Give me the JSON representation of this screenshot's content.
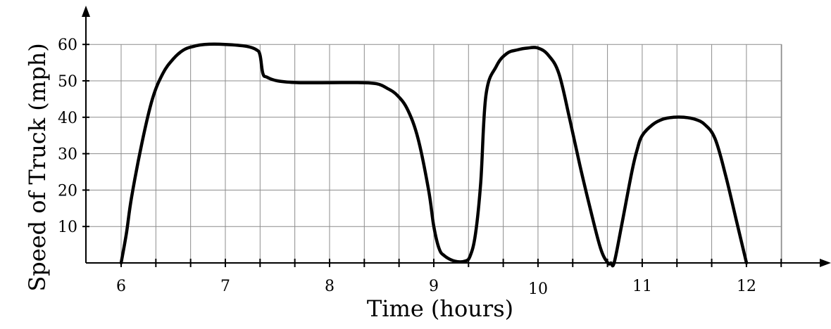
{
  "chart_data": {
    "type": "line",
    "title": "",
    "xlabel": "Time (hours)",
    "ylabel": "Speed of Truck (mph)",
    "xlim": [
      6,
      12
    ],
    "ylim": [
      0,
      60
    ],
    "x_ticks": [
      6,
      7,
      8,
      9,
      10,
      11,
      12
    ],
    "x_tick_labels": [
      "6",
      "7",
      "8",
      "9",
      "10",
      "11",
      "12"
    ],
    "y_ticks": [
      10,
      20,
      30,
      40,
      50,
      60
    ],
    "y_tick_labels": [
      "10",
      "20",
      "30",
      "40",
      "50",
      "60"
    ],
    "grid": true,
    "grid_x_step": 0.3333,
    "grid_y_step": 10,
    "series": [
      {
        "color": "#000000",
        "x": [
          6.0,
          6.05,
          6.1,
          6.2,
          6.3,
          6.4,
          6.5,
          6.6,
          6.7,
          6.8,
          7.0,
          7.2,
          7.3,
          7.333,
          7.36,
          7.4,
          7.5,
          7.7,
          8.0,
          8.3,
          8.45,
          8.55,
          8.65,
          8.75,
          8.85,
          8.95,
          9.0,
          9.05,
          9.1,
          9.2,
          9.3,
          9.35,
          9.4,
          9.45,
          9.5,
          9.6,
          9.7,
          9.8,
          9.9,
          10.0,
          10.1,
          10.2,
          10.3,
          10.4,
          10.5,
          10.6,
          10.67,
          10.7,
          10.73,
          10.8,
          10.9,
          10.95,
          11.0,
          11.1,
          11.2,
          11.3,
          11.4,
          11.5,
          11.6,
          11.7,
          11.8,
          11.9,
          12.0
        ],
        "y": [
          0,
          8,
          18,
          33,
          45,
          52,
          56,
          58.5,
          59.5,
          60,
          60,
          59.5,
          58.5,
          57,
          52,
          51,
          50,
          49.5,
          49.5,
          49.5,
          49.2,
          48,
          46,
          42,
          34,
          20,
          10,
          4,
          2,
          0.5,
          0.5,
          2,
          8,
          22,
          46,
          54,
          57.5,
          58.5,
          59,
          59,
          57,
          52,
          40,
          27,
          15,
          4,
          0,
          0,
          0,
          10,
          25,
          31,
          35,
          38,
          39.5,
          40,
          40,
          39.5,
          38,
          34,
          24,
          12,
          0
        ]
      }
    ]
  }
}
